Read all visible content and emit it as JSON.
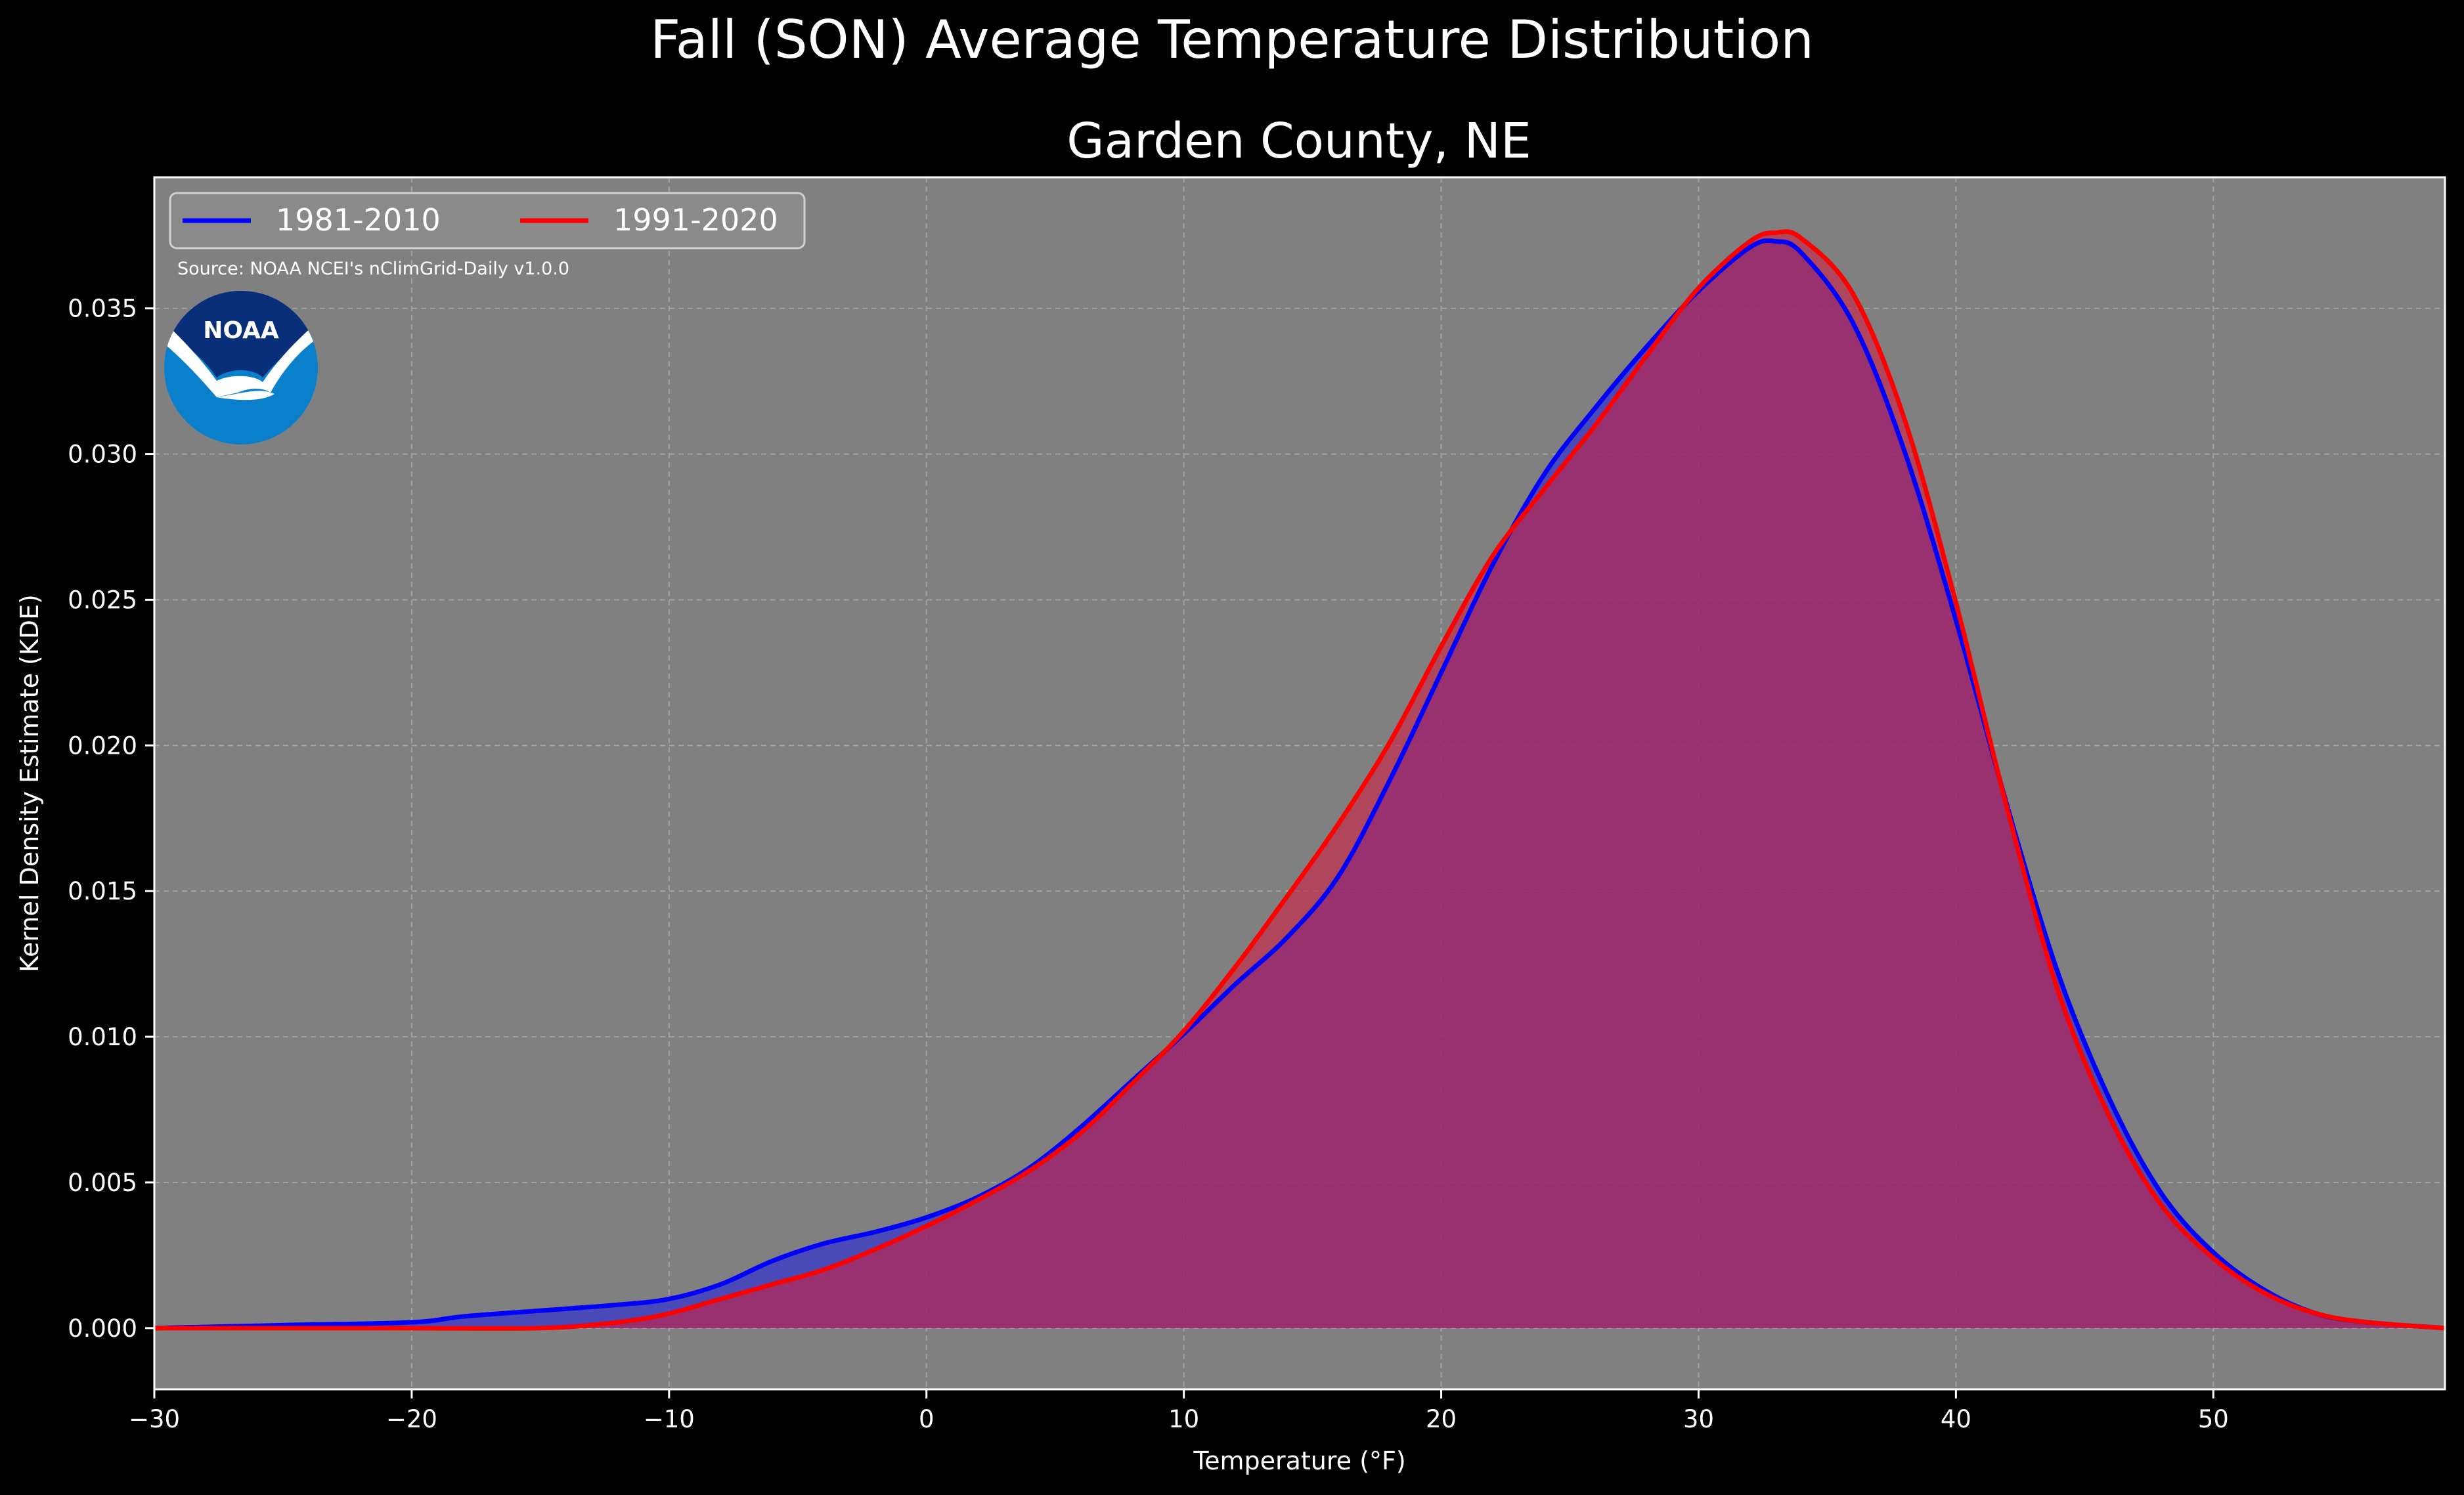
{
  "chart_data": {
    "type": "area",
    "title": "Fall (SON) Average Temperature Distribution",
    "subtitle": "Garden County, NE",
    "xlabel": "Temperature (°F)",
    "ylabel": "Kernel Density Estimate (KDE)",
    "xlim": [
      -30,
      59
    ],
    "ylim": [
      -0.0021,
      0.0395
    ],
    "x_ticks": [
      -30,
      -20,
      -10,
      0,
      10,
      20,
      30,
      40,
      50
    ],
    "x_tick_labels": [
      "−30",
      "−20",
      "−10",
      "0",
      "10",
      "20",
      "30",
      "40",
      "50"
    ],
    "y_ticks": [
      0,
      0.005,
      0.01,
      0.015,
      0.02,
      0.025,
      0.03,
      0.035
    ],
    "y_tick_labels": [
      "0.000",
      "0.005",
      "0.010",
      "0.015",
      "0.020",
      "0.025",
      "0.030",
      "0.035"
    ],
    "grid": true,
    "legend_position": "top-left",
    "source_note": "Source: NOAA NCEI's nClimGrid-Daily v1.0.0",
    "logo_text": "NOAA",
    "series": [
      {
        "name": "1981-2010",
        "color": "#0000ff",
        "fill": "#3333cc",
        "points": [
          [
            -30,
            0.0
          ],
          [
            -25,
            0.0001
          ],
          [
            -20,
            0.0002
          ],
          [
            -18,
            0.0004
          ],
          [
            -15,
            0.0006
          ],
          [
            -12,
            0.0008
          ],
          [
            -10,
            0.001
          ],
          [
            -8,
            0.0015
          ],
          [
            -6,
            0.0023
          ],
          [
            -4,
            0.0029
          ],
          [
            -2,
            0.0033
          ],
          [
            0,
            0.0038
          ],
          [
            2,
            0.0045
          ],
          [
            4,
            0.0055
          ],
          [
            6,
            0.0069
          ],
          [
            8,
            0.0085
          ],
          [
            10,
            0.0101
          ],
          [
            12,
            0.0118
          ],
          [
            14,
            0.0134
          ],
          [
            16,
            0.0155
          ],
          [
            18,
            0.0188
          ],
          [
            20,
            0.0225
          ],
          [
            22,
            0.0262
          ],
          [
            24,
            0.0293
          ],
          [
            26,
            0.0316
          ],
          [
            28,
            0.0337
          ],
          [
            30,
            0.0356
          ],
          [
            32,
            0.0371
          ],
          [
            33,
            0.0373
          ],
          [
            34,
            0.0369
          ],
          [
            36,
            0.0345
          ],
          [
            38,
            0.0301
          ],
          [
            40,
            0.0243
          ],
          [
            42,
            0.0179
          ],
          [
            44,
            0.0121
          ],
          [
            46,
            0.0078
          ],
          [
            48,
            0.0046
          ],
          [
            50,
            0.0026
          ],
          [
            52,
            0.0013
          ],
          [
            54,
            0.0005
          ],
          [
            56,
            0.0002
          ],
          [
            59,
            0.0
          ]
        ]
      },
      {
        "name": "1991-2020",
        "color": "#ff0000",
        "fill": "#cc2244",
        "points": [
          [
            -30,
            0.0
          ],
          [
            -25,
            0.0
          ],
          [
            -20,
            0.0
          ],
          [
            -15,
            0.0
          ],
          [
            -12,
            0.0002
          ],
          [
            -10,
            0.0005
          ],
          [
            -8,
            0.001
          ],
          [
            -6,
            0.0015
          ],
          [
            -4,
            0.002
          ],
          [
            -2,
            0.0027
          ],
          [
            0,
            0.0035
          ],
          [
            2,
            0.0044
          ],
          [
            4,
            0.0054
          ],
          [
            6,
            0.0067
          ],
          [
            8,
            0.0084
          ],
          [
            10,
            0.0102
          ],
          [
            12,
            0.0124
          ],
          [
            14,
            0.0148
          ],
          [
            16,
            0.0173
          ],
          [
            18,
            0.0201
          ],
          [
            20,
            0.0234
          ],
          [
            22,
            0.0265
          ],
          [
            24,
            0.0288
          ],
          [
            26,
            0.031
          ],
          [
            28,
            0.0334
          ],
          [
            30,
            0.0357
          ],
          [
            32,
            0.0373
          ],
          [
            33,
            0.0376
          ],
          [
            34,
            0.0374
          ],
          [
            36,
            0.0355
          ],
          [
            38,
            0.0312
          ],
          [
            40,
            0.0249
          ],
          [
            42,
            0.0178
          ],
          [
            44,
            0.0115
          ],
          [
            46,
            0.0072
          ],
          [
            48,
            0.0042
          ],
          [
            50,
            0.0024
          ],
          [
            52,
            0.0012
          ],
          [
            54,
            0.0005
          ],
          [
            56,
            0.0002
          ],
          [
            59,
            0.0
          ]
        ]
      }
    ],
    "colors": {
      "background": "#000000",
      "plot_background": "#808080",
      "grid": "#b0b0b0",
      "text": "#ffffff",
      "overlap_fill": "#9b1f5c",
      "noaa_dark": "#0a2f7a",
      "noaa_light": "#0a7fcb"
    }
  }
}
